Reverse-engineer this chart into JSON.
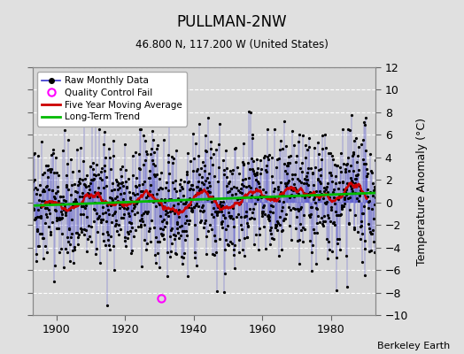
{
  "title": "PULLMAN-2NW",
  "subtitle": "46.800 N, 117.200 W (United States)",
  "ylabel": "Temperature Anomaly (°C)",
  "credit": "Berkeley Earth",
  "xlim": [
    1893,
    1993
  ],
  "ylim": [
    -10,
    12
  ],
  "yticks": [
    -10,
    -8,
    -6,
    -4,
    -2,
    0,
    2,
    4,
    6,
    8,
    10,
    12
  ],
  "xticks": [
    1900,
    1920,
    1940,
    1960,
    1980
  ],
  "bg_color": "#e0e0e0",
  "plot_bg_color": "#d8d8d8",
  "line_color": "#3333cc",
  "ma_color": "#cc0000",
  "trend_color": "#00bb00",
  "marker_color": "#000000",
  "qc_color": "#ff00ff",
  "start_year": 1893,
  "end_year": 1993,
  "seed": 42,
  "qc_fail_year": 1930,
  "qc_fail_month": 6,
  "qc_fail_value": -8.5
}
